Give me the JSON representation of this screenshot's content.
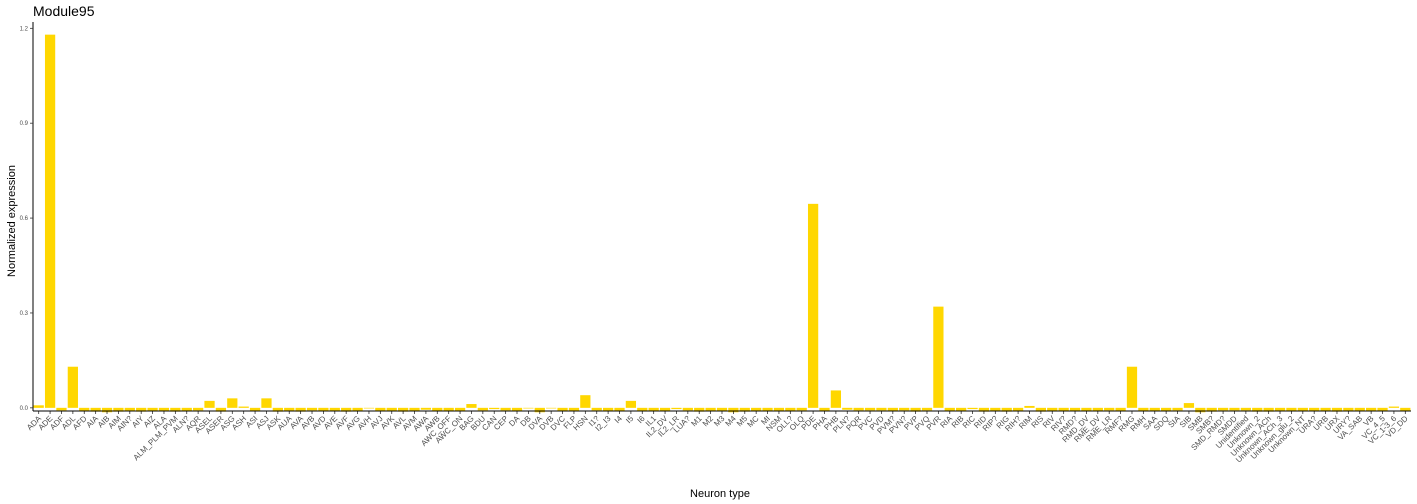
{
  "chart_data": {
    "type": "bar",
    "title": "Module95",
    "xlabel": "Neuron type",
    "ylabel": "Normalized expression",
    "yticks": [
      "0.0",
      "0.3",
      "0.6",
      "0.9",
      "1.2"
    ],
    "ylim": [
      -0.01,
      1.22
    ],
    "grid": false,
    "bar_color": "#FFD700",
    "categories": [
      "ADA",
      "ADE",
      "ADF",
      "ADL",
      "AFD",
      "AIA",
      "AIB",
      "AIM",
      "AIN?",
      "AIY",
      "AIZ",
      "ALA",
      "ALM_PLM_PVM",
      "ALN?",
      "AQR",
      "ASEL",
      "ASER",
      "ASG",
      "ASH",
      "ASI",
      "ASJ",
      "ASK",
      "AUA",
      "AVA",
      "AVB",
      "AVD",
      "AVE",
      "AVF",
      "AVG",
      "AVH",
      "AVJ",
      "AVK",
      "AVL",
      "AVM",
      "AWA",
      "AWB",
      "AWC_OFF",
      "AWC_ON",
      "BAG",
      "BDU",
      "CAN",
      "CEP",
      "DA",
      "DB",
      "DVA",
      "DVB",
      "DVC",
      "FLP",
      "HSN",
      "I1?",
      "I2_I3",
      "I4",
      "I5",
      "I6",
      "IL1",
      "IL2_DV",
      "IL2_LR",
      "LUA?",
      "M1",
      "M2",
      "M3",
      "M4",
      "M5",
      "MC",
      "MI",
      "NSM",
      "OLL?",
      "OLQ",
      "PDE",
      "PHA",
      "PHB",
      "PLN?",
      "PQR",
      "PVC",
      "PVD",
      "PVM?",
      "PVN?",
      "PVP",
      "PVQ",
      "PVR",
      "RIA",
      "RIB",
      "RIC",
      "RID",
      "RIP?",
      "RIG",
      "RIH?",
      "RIM",
      "RIS",
      "RIV",
      "RIV?",
      "RMD?",
      "RMD_DV",
      "RME_DV",
      "RME_LR",
      "RMF?",
      "RMG",
      "RMH",
      "SAA",
      "SDQ",
      "SIA",
      "SIB",
      "SMB",
      "SMB?",
      "SMD_RMD?",
      "SMDD",
      "Unidentified",
      "Unknown_2",
      "Unknown_ACh",
      "Unknown_ACh_3",
      "Unknown_glu_2",
      "Unknown_NT",
      "URA?",
      "URB",
      "URX",
      "URY?",
      "VA_SAB",
      "VB",
      "VC_4_5",
      "VC_1-3_6",
      "VD_DD"
    ],
    "values": [
      0.008,
      1.18,
      -0.008,
      0.13,
      -0.01,
      -0.012,
      -0.014,
      -0.012,
      -0.01,
      -0.012,
      -0.01,
      -0.01,
      -0.012,
      -0.01,
      -0.008,
      0.022,
      -0.012,
      0.03,
      0.004,
      -0.01,
      0.03,
      -0.012,
      -0.01,
      -0.012,
      -0.008,
      -0.01,
      -0.01,
      -0.012,
      -0.01,
      0.0,
      -0.01,
      -0.01,
      -0.012,
      -0.01,
      -0.006,
      -0.01,
      -0.01,
      -0.01,
      0.012,
      -0.008,
      -0.004,
      -0.008,
      -0.01,
      0.0,
      -0.014,
      0.0,
      -0.01,
      -0.01,
      0.04,
      -0.008,
      -0.01,
      -0.01,
      0.022,
      -0.01,
      -0.01,
      -0.01,
      -0.004,
      -0.008,
      -0.012,
      -0.01,
      -0.01,
      -0.014,
      -0.012,
      -0.01,
      -0.01,
      -0.01,
      -0.01,
      -0.008,
      0.645,
      -0.01,
      0.055,
      -0.006,
      -0.008,
      -0.008,
      -0.008,
      -0.01,
      -0.008,
      -0.012,
      -0.008,
      0.32,
      -0.01,
      -0.01,
      -0.004,
      -0.012,
      -0.01,
      -0.012,
      -0.01,
      0.006,
      -0.012,
      -0.01,
      -0.01,
      -0.01,
      -0.01,
      -0.01,
      -0.008,
      -0.01,
      0.13,
      -0.01,
      -0.01,
      -0.01,
      -0.008,
      0.015,
      -0.014,
      -0.012,
      -0.008,
      -0.008,
      -0.008,
      -0.012,
      -0.012,
      -0.01,
      -0.01,
      -0.01,
      -0.01,
      -0.01,
      -0.012,
      -0.01,
      -0.01,
      -0.01,
      -0.01,
      0.004,
      -0.01
    ]
  }
}
